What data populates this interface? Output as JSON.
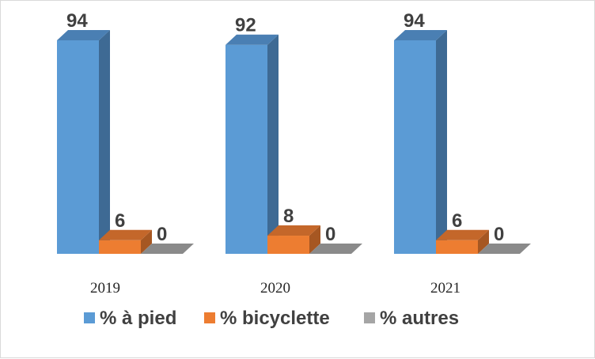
{
  "chart_data": {
    "type": "bar",
    "categories": [
      "2019",
      "2020",
      "2021"
    ],
    "series": [
      {
        "name": "% à pied",
        "values": [
          94,
          92,
          94
        ],
        "color": "#5b9bd5",
        "side": "#3e6a94",
        "top": "#4a7fb3"
      },
      {
        "name": "% bicyclette",
        "values": [
          6,
          8,
          6
        ],
        "color": "#ed7d31",
        "side": "#a65722",
        "top": "#c4672a"
      },
      {
        "name": "% autres",
        "values": [
          0,
          0,
          0
        ],
        "color": "#a5a5a5",
        "side": "#737373",
        "top": "#8a8a8a"
      }
    ],
    "title": "",
    "xlabel": "",
    "ylabel": "",
    "ylim": [
      0,
      94
    ],
    "grid": false,
    "legend": "bottom",
    "data_labels": true,
    "style": "3d"
  }
}
